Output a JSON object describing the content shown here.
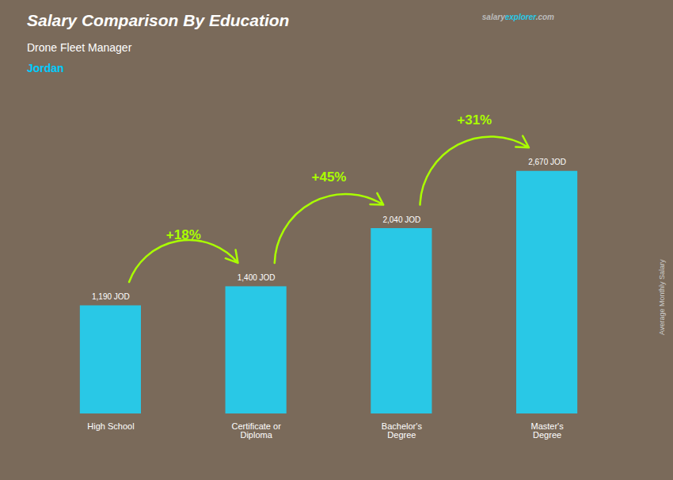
{
  "chart_data": {
    "type": "bar",
    "title": "Salary Comparison By Education",
    "subtitle": "Drone Fleet Manager",
    "ylabel": "Average Monthly Salary",
    "categories": [
      "High School",
      "Certificate or\nDiploma",
      "Bachelor's\nDegree",
      "Master's\nDegree"
    ],
    "values": [
      1190,
      1400,
      2040,
      2670
    ],
    "value_labels": [
      "1,190 JOD",
      "1,400 JOD",
      "2,040 JOD",
      "2,670 JOD"
    ],
    "data_labels": true,
    "color": "#29c8e6",
    "ylim": [
      0,
      3400
    ],
    "tick_labels": "x",
    "annotations": [
      {
        "text": "Jordan",
        "color": "#00ccff"
      },
      {
        "text": [
          "salary",
          "explorer",
          ".com"
        ],
        "colors": [
          "#bbbbbb",
          "#29c8e6",
          "#bbbbbb"
        ]
      },
      {
        "text": "+18%",
        "from": "High School",
        "to": "Certificate or\nDiploma",
        "color": "#aaff00"
      },
      {
        "text": "+45%",
        "from": "Certificate or\nDiploma",
        "to": "Bachelor's\nDegree",
        "color": "#aaff00"
      },
      {
        "text": "+31%",
        "from": "Bachelor's\nDegree",
        "to": "Master's\nDegree",
        "color": "#aaff00"
      }
    ]
  }
}
